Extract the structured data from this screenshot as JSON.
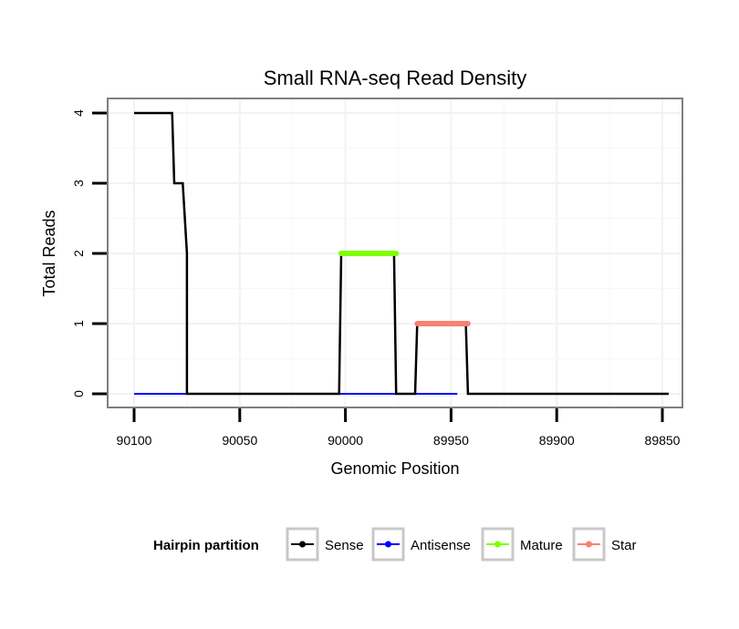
{
  "chart_data": {
    "type": "line",
    "title": "Small RNA-seq Read Density",
    "xlabel": "Genomic Position",
    "ylabel": "Total Reads",
    "x_reversed": true,
    "xlim": [
      90100,
      89850
    ],
    "ylim": [
      0,
      4
    ],
    "x_ticks": [
      90100,
      90050,
      90000,
      89950,
      89900,
      89850
    ],
    "y_ticks": [
      0,
      1,
      2,
      3,
      4
    ],
    "legend": {
      "title": "Hairpin partition",
      "position": "bottom",
      "entries": [
        {
          "name": "Sense",
          "color": "#000000"
        },
        {
          "name": "Antisense",
          "color": "#0000ff"
        },
        {
          "name": "Mature",
          "color": "#7fff00"
        },
        {
          "name": "Star",
          "color": "#fa8072"
        }
      ]
    },
    "series": [
      {
        "name": "Sense",
        "color": "#000000",
        "x": [
          90100,
          90082,
          90081,
          90077,
          90075,
          90075,
          90003,
          90002,
          89977,
          89976,
          89967,
          89966,
          89943,
          89942,
          89847
        ],
        "y": [
          4,
          4,
          3,
          3,
          2,
          0,
          0,
          2,
          2,
          0,
          0,
          1,
          1,
          0,
          0
        ]
      },
      {
        "name": "Antisense",
        "color": "#0000ff",
        "x": [
          90100,
          89947
        ],
        "y": [
          0,
          0
        ]
      },
      {
        "name": "Mature",
        "color": "#7fff00",
        "x": [
          90002,
          89976
        ],
        "y": [
          2,
          2
        ]
      },
      {
        "name": "Star",
        "color": "#fa8072",
        "x": [
          89966,
          89942
        ],
        "y": [
          1,
          1
        ]
      }
    ]
  }
}
